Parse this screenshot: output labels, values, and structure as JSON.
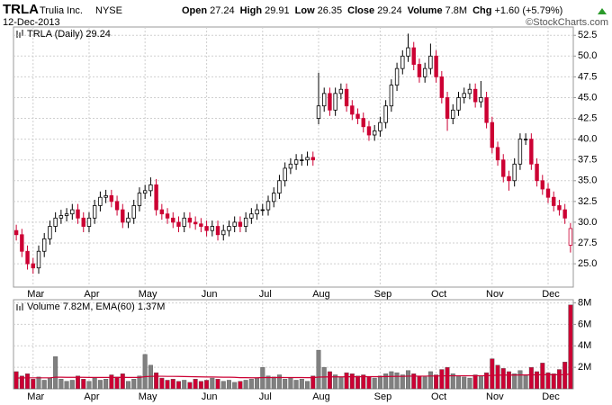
{
  "header": {
    "symbol": "TRLA",
    "name": "Trulia Inc.",
    "exchange": "NYSE",
    "date": "12-Dec-2013",
    "source": "©StockCharts.com",
    "fields": [
      {
        "label": "Open",
        "value": 27.24
      },
      {
        "label": "High",
        "value": 29.91
      },
      {
        "label": "Low",
        "value": 26.35
      },
      {
        "label": "Close",
        "value": 29.24
      },
      {
        "label": "Volume",
        "value": "7.8M"
      },
      {
        "label": "Chg",
        "value": "+1.60 (+5.79%)"
      }
    ]
  },
  "chart_data": [
    {
      "type": "candlestick",
      "legend": "TRLA (Daily) 29.24",
      "categories": [
        null,
        null,
        null,
        "Mar",
        null,
        null,
        null,
        null,
        null,
        null,
        null,
        null,
        null,
        "Apr",
        null,
        null,
        null,
        null,
        null,
        null,
        null,
        null,
        null,
        "May",
        null,
        null,
        null,
        null,
        null,
        null,
        null,
        null,
        null,
        null,
        "Jun",
        null,
        null,
        null,
        null,
        null,
        null,
        null,
        null,
        null,
        "Jul",
        null,
        null,
        null,
        null,
        null,
        null,
        null,
        null,
        null,
        "Aug",
        null,
        null,
        null,
        null,
        null,
        null,
        null,
        null,
        null,
        null,
        "Sep",
        null,
        null,
        null,
        null,
        null,
        null,
        null,
        null,
        null,
        "Oct",
        null,
        null,
        null,
        null,
        null,
        null,
        null,
        null,
        null,
        "Nov",
        null,
        null,
        null,
        null,
        null,
        null,
        null,
        null,
        null,
        "Dec",
        null,
        null,
        null,
        null
      ],
      "open": [
        29.0,
        28.5,
        26.5,
        25.0,
        24.5,
        26.5,
        28.0,
        29.5,
        30.5,
        30.8,
        31.0,
        31.5,
        30.5,
        29.5,
        30.5,
        32.0,
        33.0,
        33.2,
        32.5,
        31.5,
        30.0,
        30.5,
        32.0,
        33.5,
        33.8,
        34.5,
        31.5,
        31.0,
        30.5,
        30.0,
        29.5,
        30.5,
        30.0,
        29.8,
        29.5,
        29.0,
        29.5,
        28.5,
        29.0,
        29.5,
        30.0,
        29.5,
        30.5,
        31.0,
        31.5,
        31.5,
        32.5,
        33.5,
        35.0,
        36.5,
        37.0,
        37.5,
        37.5,
        37.8,
        42.5,
        44.0,
        45.5,
        43.5,
        45.5,
        46.0,
        44.0,
        43.0,
        42.5,
        41.5,
        40.5,
        41.0,
        42.0,
        44.0,
        46.5,
        48.5,
        50.0,
        51.0,
        49.0,
        47.5,
        48.5,
        50.0,
        47.5,
        45.0,
        42.5,
        43.5,
        45.0,
        45.5,
        46.0,
        44.5,
        45.0,
        42.0,
        39.0,
        37.5,
        35.5,
        35.0,
        37.0,
        40.0,
        40.0,
        37.0,
        35.0,
        34.0,
        33.0,
        32.0,
        31.5,
        27.24
      ],
      "high": [
        29.7,
        29.2,
        27.2,
        25.7,
        27.2,
        28.7,
        30.2,
        31.2,
        31.5,
        31.7,
        32.2,
        32.2,
        31.2,
        31.2,
        32.7,
        33.7,
        33.9,
        33.9,
        33.2,
        32.2,
        31.2,
        32.7,
        34.2,
        34.5,
        35.4,
        35.2,
        32.2,
        31.7,
        31.2,
        30.7,
        31.2,
        31.2,
        30.7,
        30.5,
        30.2,
        30.2,
        30.2,
        29.7,
        30.2,
        30.7,
        30.7,
        31.2,
        31.7,
        32.2,
        32.2,
        33.2,
        34.2,
        35.7,
        37.2,
        37.7,
        38.2,
        38.2,
        38.5,
        38.5,
        48.0,
        46.2,
        46.2,
        46.2,
        46.7,
        46.7,
        44.7,
        43.7,
        43.2,
        42.2,
        41.7,
        42.7,
        44.7,
        47.2,
        49.2,
        50.7,
        52.7,
        51.7,
        49.7,
        49.2,
        51.5,
        50.7,
        48.2,
        45.7,
        44.2,
        45.7,
        46.2,
        46.7,
        46.7,
        47.0,
        45.7,
        42.7,
        39.7,
        38.2,
        36.2,
        37.7,
        40.7,
        40.7,
        40.7,
        37.7,
        35.7,
        34.7,
        33.7,
        32.7,
        32.2,
        29.91
      ],
      "low": [
        27.8,
        25.8,
        24.3,
        23.8,
        23.8,
        25.8,
        27.3,
        28.8,
        29.8,
        30.1,
        30.3,
        29.8,
        28.8,
        28.8,
        29.8,
        31.3,
        32.3,
        31.8,
        30.8,
        29.3,
        29.3,
        29.8,
        31.3,
        32.8,
        33.1,
        30.8,
        30.3,
        29.8,
        29.3,
        28.8,
        28.8,
        29.3,
        29.1,
        28.8,
        28.3,
        28.3,
        27.8,
        27.8,
        28.3,
        28.8,
        28.8,
        28.8,
        29.8,
        30.3,
        30.8,
        30.8,
        31.8,
        32.8,
        34.3,
        35.8,
        36.3,
        36.8,
        36.8,
        36.8,
        41.8,
        43.3,
        42.8,
        42.8,
        44.8,
        43.3,
        42.3,
        41.8,
        40.8,
        39.8,
        39.8,
        40.3,
        41.3,
        43.3,
        45.8,
        47.8,
        49.3,
        48.3,
        46.8,
        46.8,
        47.8,
        46.8,
        44.3,
        41.0,
        41.8,
        42.8,
        44.3,
        44.8,
        43.8,
        43.8,
        41.3,
        38.3,
        36.8,
        34.8,
        33.8,
        34.3,
        36.3,
        39.3,
        36.3,
        34.3,
        33.3,
        32.3,
        31.3,
        30.8,
        29.8,
        26.35
      ],
      "close": [
        28.5,
        26.5,
        25.0,
        24.5,
        26.5,
        28.0,
        29.5,
        30.5,
        30.8,
        31.0,
        31.5,
        30.5,
        29.5,
        30.5,
        32.0,
        33.0,
        33.2,
        32.5,
        31.5,
        30.0,
        30.5,
        32.0,
        33.5,
        33.8,
        34.5,
        31.5,
        31.0,
        30.5,
        30.0,
        29.5,
        30.5,
        30.0,
        29.8,
        29.5,
        29.0,
        29.5,
        28.5,
        29.0,
        29.5,
        30.0,
        29.5,
        30.5,
        31.0,
        31.5,
        31.5,
        32.5,
        33.5,
        35.0,
        36.5,
        37.0,
        37.5,
        37.5,
        37.8,
        37.5,
        44.0,
        45.5,
        43.5,
        45.5,
        46.0,
        44.0,
        43.0,
        42.5,
        41.5,
        40.5,
        41.0,
        42.0,
        44.0,
        46.5,
        48.5,
        50.0,
        51.0,
        49.0,
        47.5,
        48.5,
        50.0,
        47.5,
        45.0,
        42.5,
        43.5,
        45.0,
        45.5,
        46.0,
        44.5,
        45.0,
        42.0,
        39.0,
        37.5,
        35.5,
        35.0,
        37.0,
        40.0,
        40.0,
        37.0,
        35.0,
        34.0,
        33.0,
        32.0,
        31.5,
        30.5,
        29.24
      ],
      "up_color": "#000000",
      "down_color": "#cc0033",
      "ylim": [
        22.3,
        53.5
      ],
      "yticks": [
        {
          "value": 25,
          "label": "25.0"
        },
        27.5,
        {
          "value": 30,
          "label": "30.0"
        },
        32.5,
        {
          "value": 35,
          "label": "35.0"
        },
        37.5,
        {
          "value": 40,
          "label": "40.0"
        },
        42.5,
        {
          "value": 45,
          "label": "45.0"
        },
        47.5,
        {
          "value": 50,
          "label": "50.0"
        },
        52.5
      ],
      "grid": true
    },
    {
      "type": "bar",
      "legend": "Volume 7.82M, EMA(60) 1.37M",
      "categories": [
        null,
        null,
        null,
        "Mar",
        null,
        null,
        null,
        null,
        null,
        null,
        null,
        null,
        null,
        "Apr",
        null,
        null,
        null,
        null,
        null,
        null,
        null,
        null,
        null,
        "May",
        null,
        null,
        null,
        null,
        null,
        null,
        null,
        null,
        null,
        null,
        "Jun",
        null,
        null,
        null,
        null,
        null,
        null,
        null,
        null,
        null,
        "Jul",
        null,
        null,
        null,
        null,
        null,
        null,
        null,
        null,
        null,
        "Aug",
        null,
        null,
        null,
        null,
        null,
        null,
        null,
        null,
        null,
        null,
        "Sep",
        null,
        null,
        null,
        null,
        null,
        null,
        null,
        null,
        null,
        "Oct",
        null,
        null,
        null,
        null,
        null,
        null,
        null,
        null,
        null,
        "Nov",
        null,
        null,
        null,
        null,
        null,
        null,
        null,
        null,
        null,
        "Dec",
        null,
        null,
        null,
        null
      ],
      "values": [
        1.6,
        1.2,
        1.4,
        0.9,
        1.1,
        0.8,
        1.0,
        3.0,
        0.9,
        0.7,
        0.8,
        1.2,
        0.9,
        0.7,
        1.0,
        0.8,
        0.9,
        1.3,
        1.1,
        1.4,
        0.7,
        0.9,
        1.2,
        3.2,
        2.2,
        1.5,
        1.0,
        0.8,
        0.9,
        0.7,
        0.8,
        0.6,
        0.9,
        0.7,
        0.8,
        1.0,
        0.9,
        0.7,
        0.8,
        0.6,
        0.7,
        0.8,
        0.9,
        1.0,
        2.0,
        1.2,
        1.1,
        1.3,
        0.9,
        1.0,
        0.8,
        0.9,
        0.7,
        1.2,
        3.6,
        2.0,
        1.6,
        1.3,
        1.1,
        1.5,
        1.4,
        1.2,
        1.3,
        1.1,
        1.0,
        1.2,
        1.4,
        1.6,
        1.5,
        1.3,
        1.7,
        1.4,
        1.2,
        1.1,
        1.6,
        1.3,
        1.8,
        2.0,
        1.4,
        1.2,
        1.1,
        1.0,
        1.3,
        1.2,
        1.5,
        2.8,
        2.2,
        1.9,
        1.6,
        1.4,
        1.7,
        1.3,
        2.0,
        1.6,
        2.4,
        1.5,
        1.4,
        1.8,
        2.5,
        7.82
      ],
      "ema": [
        1.0,
        1.01,
        1.02,
        1.02,
        1.02,
        1.02,
        1.02,
        1.08,
        1.08,
        1.07,
        1.07,
        1.07,
        1.07,
        1.06,
        1.06,
        1.06,
        1.06,
        1.06,
        1.06,
        1.07,
        1.06,
        1.06,
        1.06,
        1.13,
        1.16,
        1.17,
        1.17,
        1.16,
        1.16,
        1.15,
        1.14,
        1.13,
        1.12,
        1.11,
        1.1,
        1.1,
        1.09,
        1.08,
        1.08,
        1.07,
        1.04,
        1.04,
        1.03,
        1.03,
        1.05,
        1.05,
        1.05,
        1.06,
        1.05,
        1.05,
        1.05,
        1.05,
        1.04,
        1.04,
        1.09,
        1.1,
        1.11,
        1.11,
        1.11,
        1.12,
        1.12,
        1.12,
        1.13,
        1.13,
        1.13,
        1.13,
        1.14,
        1.15,
        1.16,
        1.16,
        1.18,
        1.18,
        1.18,
        1.18,
        1.19,
        1.19,
        1.2,
        1.21,
        1.21,
        1.21,
        1.22,
        1.21,
        1.21,
        1.21,
        1.22,
        1.25,
        1.27,
        1.28,
        1.28,
        1.28,
        1.29,
        1.29,
        1.3,
        1.3,
        1.31,
        1.31,
        1.31,
        1.31,
        1.32,
        1.37
      ],
      "up_color": "#808080",
      "down_color": "#cc0033",
      "ema_color": "#cc0033",
      "ylim": [
        0,
        8.3
      ],
      "yticks": [
        {
          "value": 2,
          "label": "2M"
        },
        {
          "value": 4,
          "label": "4M"
        },
        {
          "value": 6,
          "label": "6M"
        },
        {
          "value": 8,
          "label": "8M"
        }
      ],
      "grid": true
    }
  ]
}
